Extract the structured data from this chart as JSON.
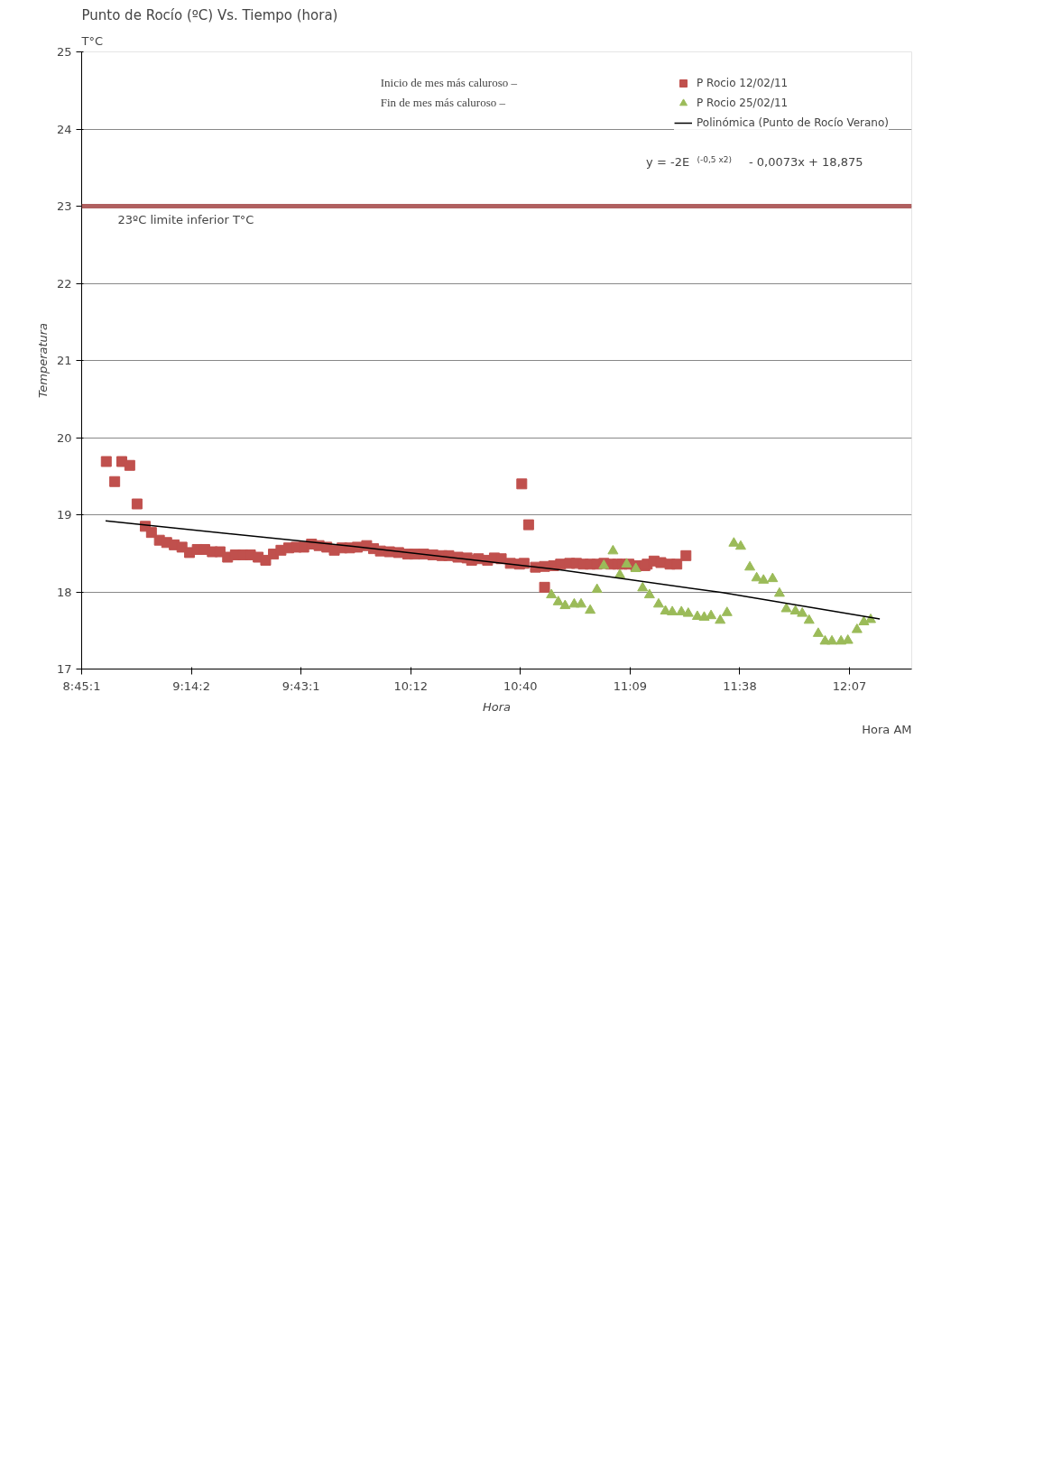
{
  "chart_data": {
    "type": "scatter",
    "title": "Punto de Rocío (ºC) Vs.  Tiempo (hora)",
    "xlabel": "Hora",
    "ylabel": "Temperatura",
    "xlim": [
      8.75,
      12.39
    ],
    "ylim": [
      17,
      25
    ],
    "xticks": [
      {
        "value": 8.75,
        "label": "8:45:1"
      },
      {
        "value": 9.231,
        "label": "9:14:2"
      },
      {
        "value": 9.712,
        "label": "9:43:1"
      },
      {
        "value": 10.193,
        "label": "10:12"
      },
      {
        "value": 10.674,
        "label": "10:40"
      },
      {
        "value": 11.155,
        "label": "11:09"
      },
      {
        "value": 11.636,
        "label": "11:38"
      },
      {
        "value": 12.117,
        "label": "12:07"
      }
    ],
    "yticks": [
      17,
      18,
      19,
      20,
      21,
      22,
      23,
      24,
      25
    ],
    "grid": "y",
    "legend": "top right",
    "series": [
      {
        "name": "P Rocio 12/02/11",
        "color": "#c0504d",
        "marker": "square",
        "x": [
          8.858,
          8.895,
          8.926,
          8.961,
          8.993,
          9.029,
          9.056,
          9.091,
          9.123,
          9.156,
          9.19,
          9.223,
          9.257,
          9.29,
          9.323,
          9.357,
          9.39,
          9.424,
          9.457,
          9.49,
          9.524,
          9.557,
          9.591,
          9.624,
          9.658,
          9.691,
          9.724,
          9.758,
          9.791,
          9.825,
          9.858,
          9.892,
          9.925,
          9.959,
          10.0,
          10.03,
          10.06,
          10.1,
          10.14,
          10.18,
          10.21,
          10.25,
          10.29,
          10.33,
          10.36,
          10.4,
          10.44,
          10.46,
          10.49,
          10.53,
          10.56,
          10.59,
          10.63,
          10.67,
          10.68,
          10.69,
          10.71,
          10.74,
          10.78,
          10.78,
          10.82,
          10.85,
          10.89,
          10.92,
          10.95,
          10.98,
          11.01,
          11.04,
          11.07,
          11.1,
          11.12,
          11.15,
          11.18,
          11.22,
          11.23,
          11.26,
          11.29,
          11.33,
          11.36,
          11.4
        ],
        "values": [
          19.69,
          19.43,
          19.69,
          19.64,
          19.14,
          18.85,
          18.77,
          18.67,
          18.64,
          18.61,
          18.58,
          18.51,
          18.55,
          18.55,
          18.52,
          18.52,
          18.45,
          18.48,
          18.48,
          18.48,
          18.45,
          18.41,
          18.49,
          18.54,
          18.57,
          18.58,
          18.58,
          18.62,
          18.6,
          18.58,
          18.54,
          18.57,
          18.57,
          18.58,
          18.6,
          18.56,
          18.53,
          18.52,
          18.51,
          18.49,
          18.49,
          18.49,
          18.48,
          18.47,
          18.47,
          18.45,
          18.44,
          18.41,
          18.43,
          18.41,
          18.44,
          18.43,
          18.37,
          18.36,
          19.4,
          18.37,
          18.87,
          18.32,
          18.33,
          18.06,
          18.34,
          18.36,
          18.37,
          18.37,
          18.36,
          18.36,
          18.36,
          18.37,
          18.36,
          18.36,
          18.36,
          18.36,
          18.34,
          18.34,
          18.36,
          18.4,
          18.38,
          18.36,
          18.36,
          18.47
        ]
      },
      {
        "name": "P Rocio 25/02/11",
        "color": "#9bbb59",
        "marker": "triangle",
        "x": [
          10.81,
          10.84,
          10.87,
          10.91,
          10.94,
          10.98,
          11.01,
          11.04,
          11.08,
          11.11,
          11.14,
          11.18,
          11.21,
          11.24,
          11.28,
          11.31,
          11.34,
          11.38,
          11.41,
          11.45,
          11.48,
          11.51,
          11.55,
          11.58,
          11.61,
          11.64,
          11.68,
          11.71,
          11.74,
          11.78,
          11.81,
          11.84,
          11.88,
          11.91,
          11.94,
          11.98,
          12.01,
          12.04,
          12.08,
          12.11,
          12.15,
          12.18,
          12.21
        ],
        "values": [
          17.96,
          17.87,
          17.82,
          17.84,
          17.84,
          17.76,
          18.03,
          18.34,
          18.53,
          18.22,
          18.36,
          18.3,
          18.05,
          17.96,
          17.84,
          17.75,
          17.74,
          17.74,
          17.72,
          17.68,
          17.67,
          17.69,
          17.63,
          17.73,
          18.63,
          18.59,
          18.32,
          18.18,
          18.15,
          18.17,
          17.98,
          17.78,
          17.75,
          17.72,
          17.63,
          17.46,
          17.36,
          17.36,
          17.36,
          17.37,
          17.51,
          17.61,
          17.64
        ]
      },
      {
        "name": "Polinómica (Punto de Rocío Verano)",
        "type": "line",
        "color": "#000000",
        "x": [
          8.855,
          9.94,
          10.84,
          11.56,
          12.25
        ],
        "values": [
          18.92,
          18.59,
          18.29,
          17.99,
          17.65
        ]
      }
    ],
    "ref_lines": [
      {
        "axis": "y",
        "value": 23,
        "label": "23ºC limite inferior  T°C",
        "color": "#b06060"
      }
    ],
    "annotations": [
      "T°C",
      "Hora AM",
      "Inicio de mes más caluroso –",
      "Fin de mes más caluroso   –",
      "y = -2E$^{(-0,5 x2)}$ - 0,0073x + 18,875"
    ]
  }
}
